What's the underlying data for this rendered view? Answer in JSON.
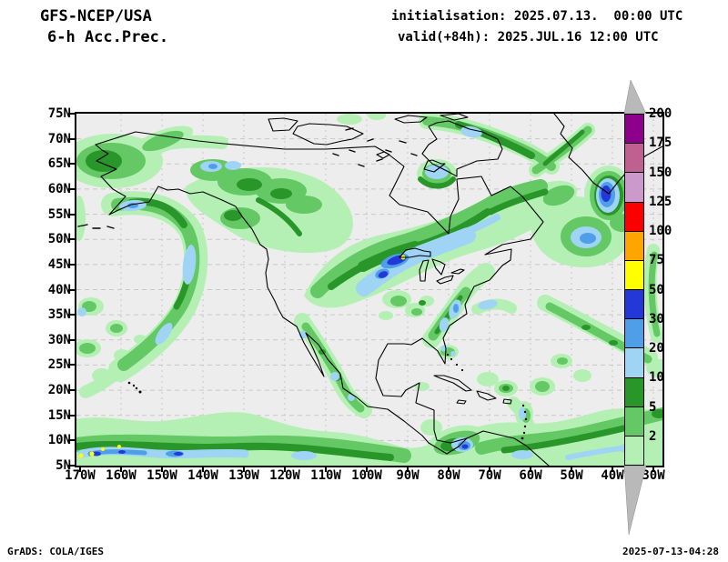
{
  "header": {
    "model": "GFS-NCEP/USA",
    "product": "6-h Acc.Prec.",
    "init": "initialisation: 2025.07.13.  00:00 UTC",
    "valid": "valid(+84h): 2025.JUL.16 12:00 UTC"
  },
  "footer": {
    "left": "GrADS: COLA/IGES",
    "right": "2025-07-13-04:28"
  },
  "axes": {
    "lat": [
      "75N",
      "70N",
      "65N",
      "60N",
      "55N",
      "50N",
      "45N",
      "40N",
      "35N",
      "30N",
      "25N",
      "20N",
      "15N",
      "10N",
      "5N"
    ],
    "lon": [
      "170W",
      "160W",
      "150W",
      "140W",
      "130W",
      "120W",
      "110W",
      "100W",
      "90W",
      "80W",
      "70W",
      "60W",
      "50W",
      "40W",
      "30W"
    ]
  },
  "colorbar": {
    "levels": [
      "2",
      "5",
      "10",
      "20",
      "30",
      "50",
      "75",
      "100",
      "125",
      "150",
      "175",
      "200"
    ],
    "colors_bottom_to_top": [
      "#b4f0b4",
      "#64c864",
      "#289628",
      "#9fd4f4",
      "#4f9fe8",
      "#2438d8",
      "#ffff00",
      "#ffa500",
      "#fa0000",
      "#cc99cc",
      "#c06090",
      "#8c008c"
    ],
    "arrow_color": "#b9b9b9"
  },
  "map": {
    "background": "#ededed",
    "grid_color": "#c8c8c8",
    "coast_color": "#000000"
  }
}
